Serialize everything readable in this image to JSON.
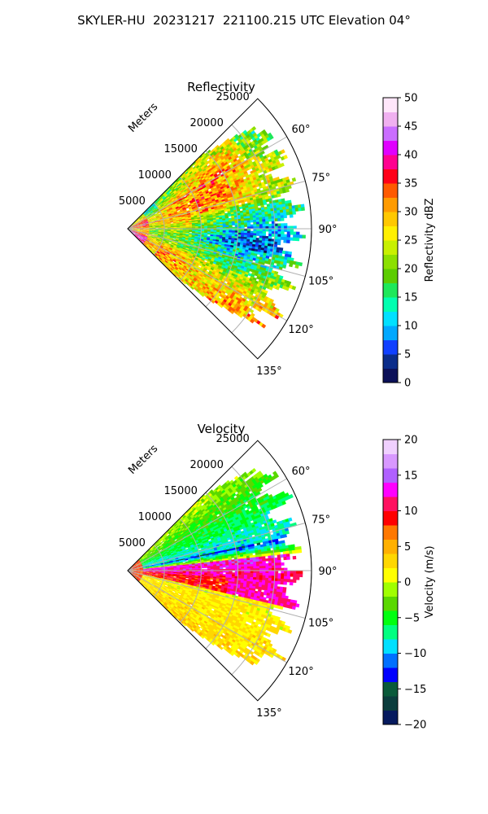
{
  "title": "SKYLER-HU  20231217  221100.215 UTC Elevation 04°",
  "range_axis_label": "Meters",
  "chart_data": [
    {
      "type": "heatmap",
      "projection": "polar-sector",
      "title": "Reflectivity",
      "azimuth_ticks": [
        "60°",
        "75°",
        "90°",
        "105°",
        "120°",
        "135°"
      ],
      "azimuth_tick_values": [
        60,
        75,
        90,
        105,
        120,
        135
      ],
      "azimuth_range": [
        45,
        135
      ],
      "range_ticks": [
        "5000",
        "10000",
        "15000",
        "20000",
        "25000"
      ],
      "range_tick_values": [
        5000,
        10000,
        15000,
        20000,
        25000
      ],
      "range_max": 25000,
      "colorbar": {
        "label": "Reflectivity dBZ",
        "range": [
          0,
          50
        ],
        "ticks": [
          "0",
          "5",
          "10",
          "15",
          "20",
          "25",
          "30",
          "35",
          "40",
          "45",
          "50"
        ],
        "tick_values": [
          0,
          5,
          10,
          15,
          20,
          25,
          30,
          35,
          40,
          45,
          50
        ],
        "colors": [
          "#0b1058",
          "#0a2c8a",
          "#1040ff",
          "#00a8ff",
          "#00e0ff",
          "#00ffb0",
          "#1ee85a",
          "#5ccd00",
          "#8ce000",
          "#c8f000",
          "#fff000",
          "#ffc800",
          "#ff9b00",
          "#ff5a00",
          "#ff0018",
          "#ff0090",
          "#e000ff",
          "#ca6dff",
          "#f0b0f0",
          "#ffe6fa"
        ]
      },
      "grid": true
    },
    {
      "type": "heatmap",
      "projection": "polar-sector",
      "title": "Velocity",
      "azimuth_ticks": [
        "60°",
        "75°",
        "90°",
        "105°",
        "120°",
        "135°"
      ],
      "azimuth_tick_values": [
        60,
        75,
        90,
        105,
        120,
        135
      ],
      "azimuth_range": [
        45,
        135
      ],
      "range_ticks": [
        "5000",
        "10000",
        "15000",
        "20000",
        "25000"
      ],
      "range_tick_values": [
        5000,
        10000,
        15000,
        20000,
        25000
      ],
      "range_max": 25000,
      "colorbar": {
        "label": "Velocity (m/s)",
        "range": [
          -20,
          20
        ],
        "ticks": [
          "−20",
          "−15",
          "−10",
          "−5",
          "0",
          "5",
          "10",
          "15",
          "20"
        ],
        "tick_values": [
          -20,
          -15,
          -10,
          -5,
          0,
          5,
          10,
          15,
          20
        ],
        "colors": [
          "#061a5e",
          "#0b3d3d",
          "#0a5a3a",
          "#0000ff",
          "#0070ff",
          "#00e0ff",
          "#00ff80",
          "#00ff10",
          "#5ad800",
          "#a0ff00",
          "#ffff00",
          "#ffd700",
          "#ffb000",
          "#ff7800",
          "#ff0000",
          "#ff1060",
          "#ff00ff",
          "#b060ff",
          "#d898ff",
          "#f0d0ff"
        ]
      },
      "grid": true
    }
  ]
}
